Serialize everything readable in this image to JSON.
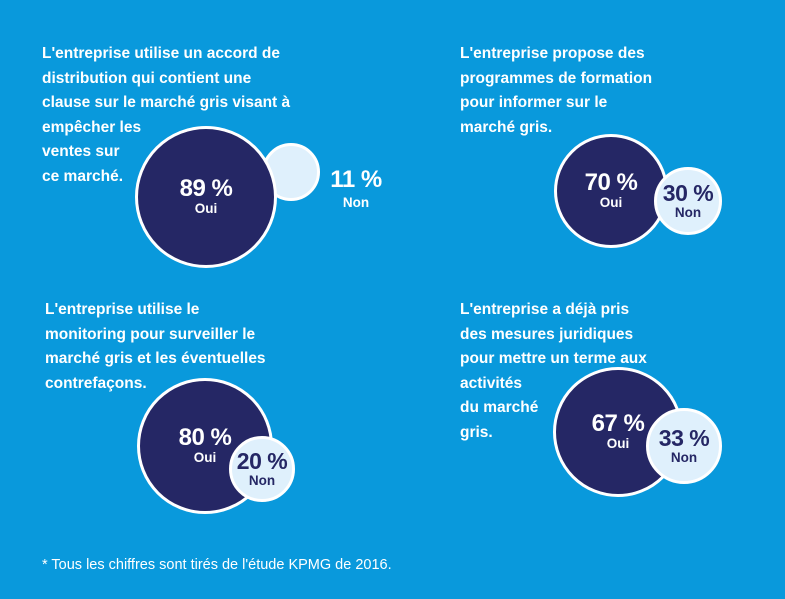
{
  "colors": {
    "background": "#0999dc",
    "oui_circle": "#252765",
    "non_circle": "#dff0fc",
    "text": "#ffffff"
  },
  "panels": [
    {
      "question_lines": [
        "L'entreprise utilise un accord de",
        "distribution qui contient une",
        "clause sur le marché gris visant à",
        "empêcher les",
        "ventes sur",
        "ce marché."
      ],
      "oui": {
        "value": "89 %",
        "label": "Oui",
        "percent": 89
      },
      "non": {
        "value": "11 %",
        "label": "Non",
        "percent": 11
      }
    },
    {
      "question_lines": [
        "L'entreprise propose des",
        "programmes de formation",
        "pour informer sur le",
        "marché gris."
      ],
      "oui": {
        "value": "70 %",
        "label": "Oui",
        "percent": 70
      },
      "non": {
        "value": "30 %",
        "label": "Non",
        "percent": 30
      }
    },
    {
      "question_lines": [
        "L'entreprise utilise le",
        "monitoring pour surveiller le",
        "marché gris et les éventuelles",
        "contrefaçons."
      ],
      "oui": {
        "value": "80 %",
        "label": "Oui",
        "percent": 80
      },
      "non": {
        "value": "20 %",
        "label": "Non",
        "percent": 20
      }
    },
    {
      "question_lines": [
        "L'entreprise a déjà pris",
        "des mesures juridiques",
        "pour mettre un terme aux",
        "activités",
        "du marché",
        "gris."
      ],
      "oui": {
        "value": "67 %",
        "label": "Oui",
        "percent": 67
      },
      "non": {
        "value": "33 %",
        "label": "Non",
        "percent": 33
      }
    }
  ],
  "footnote": "* Tous les chiffres sont tirés de l'étude KPMG de 2016."
}
